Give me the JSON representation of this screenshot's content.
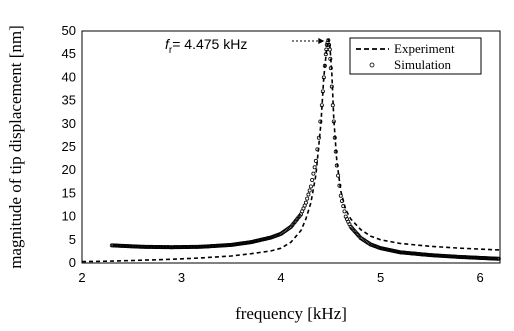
{
  "chart_data": {
    "type": "line",
    "title": "",
    "xlabel": "frequency [kHz]",
    "ylabel": "magnitude of tip displacement [nm]",
    "xlim": [
      2,
      6.2
    ],
    "ylim": [
      0,
      50
    ],
    "xticks": [
      2,
      3,
      4,
      5,
      6
    ],
    "yticks": [
      0,
      5,
      10,
      15,
      20,
      25,
      30,
      35,
      40,
      45,
      50
    ],
    "grid": false,
    "legend_position": "top-right",
    "annotation": {
      "prefix": "f",
      "subscript": "r",
      "text": "= 4.475 kHz",
      "points_to": {
        "x": 4.475,
        "y": 48.3
      }
    },
    "series": [
      {
        "name": "Experiment",
        "style": "dashed",
        "color": "#000000",
        "x": [
          2.0,
          2.3,
          2.6,
          2.9,
          3.2,
          3.5,
          3.7,
          3.9,
          4.0,
          4.1,
          4.2,
          4.25,
          4.3,
          4.35,
          4.4,
          4.43,
          4.46,
          4.475,
          4.49,
          4.51,
          4.53,
          4.56,
          4.6,
          4.65,
          4.7,
          4.8,
          4.9,
          5.0,
          5.2,
          5.5,
          5.8,
          6.0,
          6.2
        ],
        "y": [
          0.3,
          0.4,
          0.6,
          0.8,
          1.1,
          1.5,
          2.0,
          2.6,
          3.2,
          4.5,
          7.0,
          9.5,
          13.0,
          19.0,
          30.0,
          40.0,
          46.5,
          48.3,
          47.0,
          41.0,
          31.0,
          22.0,
          15.5,
          11.5,
          9.5,
          7.2,
          5.8,
          5.0,
          4.2,
          3.6,
          3.2,
          3.0,
          2.8
        ]
      },
      {
        "name": "Simulation",
        "style": "markers",
        "color": "#000000",
        "x": [
          2.3,
          2.6,
          2.9,
          3.2,
          3.5,
          3.7,
          3.9,
          4.0,
          4.1,
          4.2,
          4.25,
          4.3,
          4.35,
          4.38,
          4.41,
          4.43,
          4.45,
          4.46,
          4.475,
          4.49,
          4.5,
          4.52,
          4.54,
          4.56,
          4.6,
          4.65,
          4.7,
          4.8,
          4.9,
          5.0,
          5.2,
          5.5,
          5.8,
          6.0,
          6.2
        ],
        "y": [
          3.8,
          3.5,
          3.4,
          3.5,
          3.9,
          4.5,
          5.5,
          6.3,
          7.8,
          10.5,
          13.0,
          16.5,
          22.0,
          27.0,
          34.0,
          40.0,
          45.0,
          47.0,
          48.0,
          46.0,
          42.0,
          34.0,
          27.0,
          21.0,
          14.5,
          10.0,
          7.8,
          5.4,
          4.0,
          3.2,
          2.3,
          1.7,
          1.3,
          1.1,
          0.9
        ]
      }
    ]
  }
}
